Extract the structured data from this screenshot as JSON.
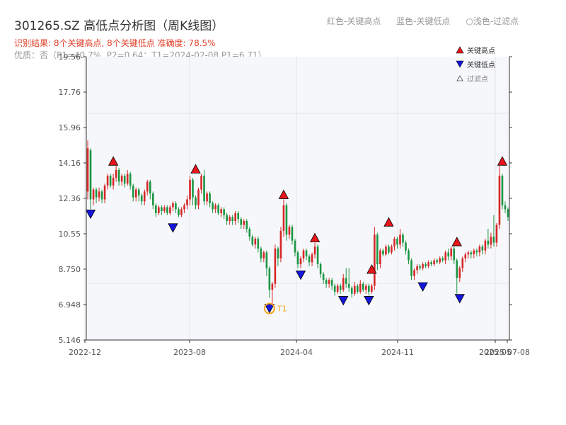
{
  "chart_data": {
    "type": "candlestick",
    "title": "301265.SZ 高低点分析图（周K线图）",
    "top_legend": [
      "红色-关键高点",
      "蓝色-关键低点",
      "○浅色-过滤点"
    ],
    "subtitle_result": "识别结果: 8个关键高点, 8个关键低点  准确度: 78.5%",
    "subtitle_quality": "优质：否（P1=40.7%, P2=0.64；T1=2024-02-08 P1=6.71）",
    "y_ticks": [
      "5.146",
      "6.948",
      "8.750",
      "10.55",
      "12.36",
      "14.16",
      "15.96",
      "17.76",
      "19.56"
    ],
    "x_ticks": [
      "2022-12",
      "2023-08",
      "2024-04",
      "2024-11",
      "2025-05",
      "2025-07-08"
    ],
    "ylim": [
      5.146,
      19.56
    ],
    "legend": [
      "关键高点",
      "关键低点",
      "过滤点"
    ],
    "colors": {
      "up": "#d62728",
      "down": "#1a9641",
      "high": "#e8151b",
      "low": "#1515e0",
      "accent": "#f5a623"
    },
    "candles": [
      [
        12.7,
        14.9,
        12.4,
        15.3,
        12.3
      ],
      [
        14.8,
        12.3,
        12.0,
        14.9,
        11.8
      ],
      [
        12.3,
        12.8,
        12.2,
        12.9,
        12.0
      ],
      [
        12.8,
        12.4,
        12.3,
        12.9,
        12.1
      ],
      [
        12.4,
        12.7,
        12.3,
        12.9,
        12.2
      ],
      [
        12.7,
        12.3,
        12.2,
        12.8,
        12.1
      ],
      [
        12.3,
        13.0,
        12.2,
        13.1,
        12.1
      ],
      [
        13.0,
        13.5,
        12.9,
        13.6,
        12.8
      ],
      [
        13.5,
        13.0,
        12.9,
        13.6,
        12.9
      ],
      [
        13.0,
        13.4,
        12.9,
        13.6,
        12.8
      ],
      [
        13.4,
        13.8,
        13.3,
        14.0,
        13.2
      ],
      [
        13.8,
        13.2,
        13.1,
        13.9,
        13.0
      ],
      [
        13.2,
        13.5,
        13.1,
        13.6,
        13.0
      ],
      [
        13.5,
        13.1,
        13.0,
        13.6,
        12.9
      ],
      [
        13.1,
        13.6,
        13.0,
        13.8,
        13.0
      ],
      [
        13.6,
        13.0,
        12.9,
        13.7,
        12.8
      ],
      [
        13.0,
        12.4,
        12.3,
        13.1,
        12.2
      ],
      [
        12.4,
        12.8,
        12.3,
        12.9,
        12.2
      ],
      [
        12.8,
        12.5,
        12.3,
        12.9,
        12.2
      ],
      [
        12.5,
        12.2,
        12.1,
        12.6,
        12.0
      ],
      [
        12.2,
        12.7,
        12.1,
        12.8,
        12.0
      ],
      [
        12.7,
        13.2,
        12.6,
        13.3,
        12.5
      ],
      [
        13.2,
        12.6,
        12.4,
        13.3,
        12.3
      ],
      [
        12.6,
        12.0,
        11.9,
        12.7,
        11.8
      ],
      [
        12.0,
        11.6,
        11.5,
        12.1,
        11.4
      ],
      [
        11.6,
        11.9,
        11.5,
        12.0,
        11.5
      ],
      [
        11.9,
        11.7,
        11.6,
        12.0,
        11.5
      ],
      [
        11.7,
        11.9,
        11.6,
        12.0,
        11.6
      ],
      [
        11.9,
        11.6,
        11.5,
        12.0,
        11.5
      ],
      [
        11.6,
        11.9,
        11.5,
        12.0,
        11.5
      ],
      [
        11.9,
        12.1,
        11.8,
        12.2,
        11.7
      ],
      [
        12.1,
        11.8,
        11.7,
        12.2,
        11.6
      ],
      [
        11.8,
        11.5,
        11.4,
        11.9,
        11.4
      ],
      [
        11.5,
        11.8,
        11.5,
        11.9,
        11.4
      ],
      [
        11.8,
        12.0,
        11.7,
        12.1,
        11.6
      ],
      [
        12.0,
        12.3,
        11.9,
        12.5,
        11.8
      ],
      [
        12.3,
        13.3,
        12.1,
        13.5,
        12.0
      ],
      [
        13.3,
        12.4,
        12.1,
        13.4,
        12.0
      ],
      [
        12.4,
        12.0,
        11.9,
        12.5,
        11.8
      ],
      [
        12.0,
        12.8,
        11.9,
        12.9,
        11.8
      ],
      [
        12.8,
        13.5,
        12.7,
        13.6,
        12.6
      ],
      [
        13.5,
        12.2,
        12.1,
        13.8,
        12.0
      ],
      [
        12.2,
        12.6,
        12.1,
        12.7,
        12.0
      ],
      [
        12.6,
        12.1,
        12.0,
        12.7,
        11.9
      ],
      [
        12.1,
        11.8,
        11.7,
        12.2,
        11.6
      ],
      [
        11.8,
        12.0,
        11.7,
        12.1,
        11.6
      ],
      [
        12.0,
        11.6,
        11.5,
        12.1,
        11.5
      ],
      [
        11.6,
        11.8,
        11.5,
        11.9,
        11.4
      ],
      [
        11.8,
        11.5,
        11.4,
        11.9,
        11.3
      ],
      [
        11.5,
        11.2,
        11.1,
        11.6,
        11.0
      ],
      [
        11.2,
        11.4,
        11.1,
        11.5,
        11.0
      ],
      [
        11.4,
        11.2,
        11.1,
        11.5,
        11.0
      ],
      [
        11.2,
        11.6,
        11.1,
        11.7,
        11.0
      ],
      [
        11.6,
        11.3,
        11.2,
        11.7,
        11.1
      ],
      [
        11.3,
        11.0,
        10.9,
        11.4,
        10.8
      ],
      [
        11.0,
        11.2,
        10.9,
        11.3,
        10.8
      ],
      [
        11.2,
        10.8,
        10.7,
        11.3,
        10.6
      ],
      [
        10.8,
        10.4,
        10.3,
        10.9,
        10.2
      ],
      [
        10.4,
        10.0,
        9.9,
        10.5,
        9.9
      ],
      [
        10.0,
        10.3,
        9.9,
        10.4,
        9.8
      ],
      [
        10.3,
        9.8,
        9.7,
        10.4,
        9.6
      ],
      [
        9.8,
        9.3,
        9.2,
        9.9,
        9.1
      ],
      [
        9.3,
        9.6,
        9.2,
        9.7,
        9.1
      ],
      [
        9.6,
        8.8,
        8.5,
        9.7,
        8.4
      ],
      [
        8.8,
        7.7,
        7.4,
        8.9,
        7.3
      ],
      [
        7.7,
        8.0,
        7.6,
        8.1,
        7.0
      ],
      [
        8.0,
        9.8,
        7.9,
        10.0,
        7.8
      ],
      [
        9.8,
        9.3,
        9.0,
        9.9,
        8.9
      ],
      [
        9.3,
        10.7,
        9.2,
        10.9,
        9.1
      ],
      [
        10.7,
        12.0,
        10.5,
        12.3,
        10.4
      ],
      [
        12.0,
        10.5,
        10.3,
        12.1,
        10.2
      ],
      [
        10.5,
        10.9,
        10.4,
        11.0,
        10.3
      ],
      [
        10.9,
        10.2,
        10.1,
        11.0,
        10.0
      ],
      [
        10.2,
        9.6,
        9.5,
        10.3,
        9.4
      ],
      [
        9.6,
        9.0,
        8.9,
        9.7,
        8.8
      ],
      [
        9.0,
        9.3,
        8.9,
        9.4,
        8.8
      ],
      [
        9.3,
        9.7,
        9.2,
        9.8,
        9.1
      ],
      [
        9.7,
        9.4,
        9.3,
        9.8,
        9.2
      ],
      [
        9.4,
        9.1,
        9.0,
        9.5,
        8.9
      ],
      [
        9.1,
        9.5,
        9.0,
        9.6,
        8.9
      ],
      [
        9.5,
        9.9,
        9.4,
        10.1,
        9.3
      ],
      [
        9.9,
        9.0,
        8.9,
        10.0,
        8.8
      ],
      [
        9.0,
        8.5,
        8.4,
        9.1,
        8.3
      ],
      [
        8.5,
        8.2,
        8.1,
        8.6,
        8.0
      ],
      [
        8.2,
        8.0,
        7.9,
        8.3,
        7.8
      ],
      [
        8.0,
        8.2,
        7.9,
        8.3,
        7.8
      ],
      [
        8.2,
        7.9,
        7.8,
        8.3,
        7.7
      ],
      [
        7.9,
        7.6,
        7.5,
        8.0,
        7.4
      ],
      [
        7.6,
        7.9,
        7.5,
        8.0,
        7.5
      ],
      [
        7.9,
        7.7,
        7.6,
        8.0,
        7.5
      ],
      [
        7.7,
        8.3,
        7.6,
        8.5,
        7.6
      ],
      [
        8.3,
        8.0,
        7.9,
        8.8,
        7.8
      ],
      [
        8.0,
        7.8,
        7.7,
        8.8,
        7.6
      ],
      [
        7.8,
        7.5,
        7.4,
        7.9,
        7.3
      ],
      [
        7.5,
        7.9,
        7.4,
        8.1,
        7.4
      ],
      [
        7.9,
        7.6,
        7.5,
        8.0,
        7.5
      ],
      [
        7.6,
        8.0,
        7.5,
        8.2,
        7.5
      ],
      [
        8.0,
        7.7,
        7.6,
        8.1,
        7.6
      ],
      [
        7.7,
        7.9,
        7.6,
        8.0,
        7.5
      ],
      [
        7.9,
        7.6,
        7.5,
        8.0,
        7.4
      ],
      [
        7.6,
        7.9,
        7.5,
        8.0,
        7.5
      ],
      [
        7.9,
        10.5,
        7.8,
        10.9,
        7.7
      ],
      [
        10.5,
        9.0,
        8.8,
        10.6,
        8.7
      ],
      [
        9.0,
        9.7,
        8.9,
        9.8,
        8.8
      ],
      [
        9.7,
        9.5,
        9.4,
        9.8,
        9.4
      ],
      [
        9.5,
        9.9,
        9.4,
        10.0,
        9.4
      ],
      [
        9.9,
        9.6,
        9.5,
        10.0,
        9.5
      ],
      [
        9.6,
        9.9,
        9.5,
        10.0,
        9.5
      ],
      [
        9.9,
        10.3,
        9.8,
        10.4,
        9.7
      ],
      [
        10.3,
        10.0,
        9.9,
        10.4,
        9.8
      ],
      [
        10.0,
        10.5,
        9.9,
        10.8,
        9.8
      ],
      [
        10.5,
        10.1,
        10.0,
        10.6,
        9.9
      ],
      [
        10.1,
        9.7,
        9.6,
        10.2,
        9.5
      ],
      [
        9.7,
        9.2,
        9.1,
        9.8,
        9.0
      ],
      [
        9.2,
        8.4,
        8.3,
        9.3,
        8.2
      ],
      [
        8.4,
        8.7,
        8.3,
        8.8,
        8.2
      ],
      [
        8.7,
        8.9,
        8.6,
        9.0,
        8.5
      ],
      [
        8.9,
        8.8,
        8.7,
        9.0,
        8.7
      ],
      [
        8.8,
        9.0,
        8.7,
        9.1,
        8.7
      ],
      [
        9.0,
        8.9,
        8.8,
        9.1,
        8.8
      ],
      [
        8.9,
        9.1,
        8.8,
        9.2,
        8.8
      ],
      [
        9.1,
        9.0,
        8.9,
        9.2,
        8.9
      ],
      [
        9.0,
        9.2,
        8.9,
        9.3,
        8.9
      ],
      [
        9.2,
        9.1,
        9.0,
        9.3,
        9.0
      ],
      [
        9.1,
        9.3,
        9.0,
        9.4,
        9.0
      ],
      [
        9.3,
        9.2,
        9.1,
        9.4,
        9.1
      ],
      [
        9.2,
        9.6,
        9.1,
        9.7,
        9.0
      ],
      [
        9.6,
        9.4,
        9.3,
        9.8,
        9.2
      ],
      [
        9.4,
        9.8,
        9.3,
        9.9,
        9.2
      ],
      [
        9.8,
        9.2,
        9.1,
        9.9,
        9.0
      ],
      [
        9.2,
        8.3,
        7.8,
        9.3,
        7.5
      ],
      [
        8.3,
        8.8,
        8.2,
        8.9,
        8.1
      ],
      [
        8.8,
        9.3,
        8.7,
        9.4,
        8.6
      ],
      [
        9.3,
        9.5,
        9.2,
        9.6,
        9.1
      ],
      [
        9.5,
        9.6,
        9.4,
        9.7,
        9.3
      ],
      [
        9.6,
        9.5,
        9.4,
        9.7,
        9.3
      ],
      [
        9.5,
        9.7,
        9.4,
        9.8,
        9.3
      ],
      [
        9.7,
        9.6,
        9.5,
        9.8,
        9.4
      ],
      [
        9.6,
        9.9,
        9.5,
        10.0,
        9.4
      ],
      [
        9.9,
        9.7,
        9.6,
        10.0,
        9.5
      ],
      [
        9.7,
        10.2,
        9.6,
        10.3,
        9.5
      ],
      [
        10.2,
        10.0,
        9.9,
        10.8,
        9.8
      ],
      [
        10.0,
        10.4,
        9.9,
        10.6,
        9.8
      ],
      [
        10.4,
        10.1,
        10.0,
        11.5,
        9.9
      ],
      [
        10.1,
        11.0,
        10.0,
        11.1,
        9.9
      ],
      [
        11.0,
        13.5,
        10.9,
        14.0,
        10.8
      ],
      [
        13.5,
        12.0,
        11.9,
        13.6,
        11.8
      ],
      [
        12.0,
        11.8,
        11.7,
        12.2,
        11.6
      ],
      [
        11.8,
        11.4,
        11.3,
        11.9,
        11.2
      ]
    ],
    "key_highs": [
      {
        "i": 9,
        "v": 14.0
      },
      {
        "i": 38,
        "v": 13.6
      },
      {
        "i": 69,
        "v": 12.3
      },
      {
        "i": 80,
        "v": 10.1
      },
      {
        "i": 100,
        "v": 8.5
      },
      {
        "i": 106,
        "v": 10.9
      },
      {
        "i": 130,
        "v": 9.9
      },
      {
        "i": 146,
        "v": 14.0
      }
    ],
    "key_lows": [
      {
        "i": 1,
        "v": 11.8
      },
      {
        "i": 30,
        "v": 11.1
      },
      {
        "i": 64,
        "v": 7.0
      },
      {
        "i": 75,
        "v": 8.7
      },
      {
        "i": 90,
        "v": 7.4
      },
      {
        "i": 99,
        "v": 7.4
      },
      {
        "i": 118,
        "v": 8.1
      },
      {
        "i": 131,
        "v": 7.5
      }
    ],
    "t1_marker": {
      "i": 64,
      "v": 7.0,
      "label": "T1"
    }
  }
}
